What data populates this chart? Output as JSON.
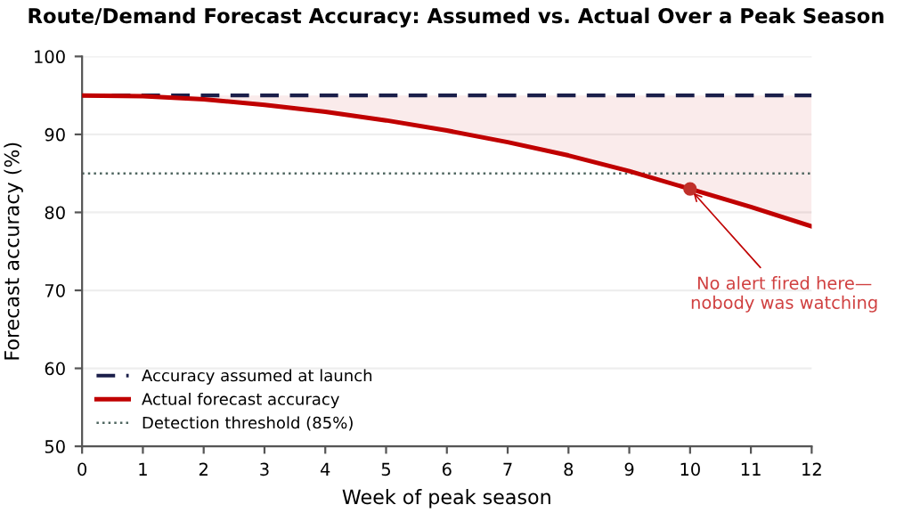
{
  "chart_data": {
    "type": "line",
    "title": "Route/Demand Forecast Accuracy: Assumed vs. Actual Over a Peak Season",
    "xlabel": "Week of peak season",
    "ylabel": "Forecast accuracy (%)",
    "x": [
      0,
      1,
      2,
      3,
      4,
      5,
      6,
      7,
      8,
      9,
      10,
      11,
      12
    ],
    "series": [
      {
        "name": "Accuracy assumed at launch",
        "color": "#1b1f4a",
        "line_style": "dashed",
        "values": [
          95,
          95,
          95,
          95,
          95,
          95,
          95,
          95,
          95,
          95,
          95,
          95,
          95
        ]
      },
      {
        "name": "Actual forecast accuracy",
        "color": "#c00000",
        "line_style": "solid",
        "values": [
          95,
          94.9,
          94.5,
          93.8,
          92.9,
          91.8,
          90.5,
          89.0,
          87.3,
          85.3,
          83.0,
          80.7,
          78.2
        ],
        "lower": [
          95,
          94.9,
          94.5,
          93.8,
          92.9,
          91.8,
          90.5,
          89.0,
          87.3,
          85.3,
          83.0,
          80.7,
          78.2
        ],
        "upper": [
          95,
          95,
          95,
          95,
          95,
          95,
          95,
          95,
          95,
          95,
          95,
          95,
          95
        ]
      },
      {
        "type": "scatter",
        "color": "#c0302a",
        "marker": "circle",
        "x": [
          10
        ],
        "values": [
          83.0
        ]
      }
    ],
    "ref_lines": [
      {
        "axis": "y",
        "value": 85,
        "label": "Detection threshold (85%)",
        "color": "#4f6660",
        "line_style": "dotted"
      }
    ],
    "annotations": [
      {
        "text": "No alert fired here—\nnobody was watching",
        "x": 10,
        "y": 83.0
      }
    ],
    "xlim": [
      0,
      12
    ],
    "xticks": [
      0,
      1,
      2,
      3,
      4,
      5,
      6,
      7,
      8,
      9,
      10,
      11,
      12
    ],
    "ylim": [
      50,
      100
    ],
    "yticks": [
      50,
      60,
      70,
      80,
      90,
      100
    ],
    "grid": "y",
    "legend": "bottom left"
  }
}
